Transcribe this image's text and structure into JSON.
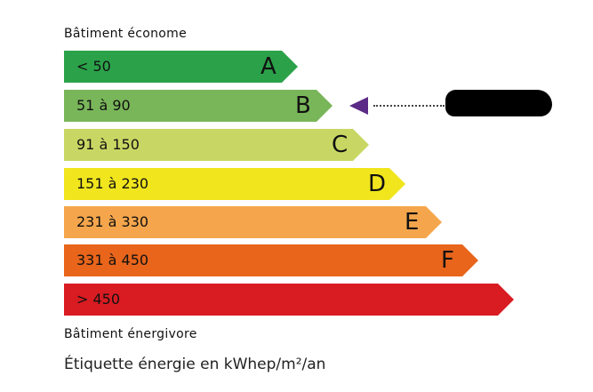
{
  "header": {
    "top_label": "Bâtiment économe",
    "bottom_label": "Bâtiment énergivore"
  },
  "caption": "Étiquette énergie en kWhep/m²/an",
  "classes": [
    {
      "letter": "A",
      "range": "< 50",
      "color": "#2ba24a"
    },
    {
      "letter": "B",
      "range": "51 à 90",
      "color": "#79b65a"
    },
    {
      "letter": "C",
      "range": "91 à 150",
      "color": "#c8d763"
    },
    {
      "letter": "D",
      "range": "151 à 230",
      "color": "#f1e51e"
    },
    {
      "letter": "E",
      "range": "231 à 330",
      "color": "#f5a64c"
    },
    {
      "letter": "F",
      "range": "331 à 450",
      "color": "#e8651b"
    },
    {
      "letter": "",
      "range": "> 450",
      "color": "#d91b22"
    }
  ],
  "indicator": {
    "class": "B",
    "color": "#5b2a86"
  }
}
